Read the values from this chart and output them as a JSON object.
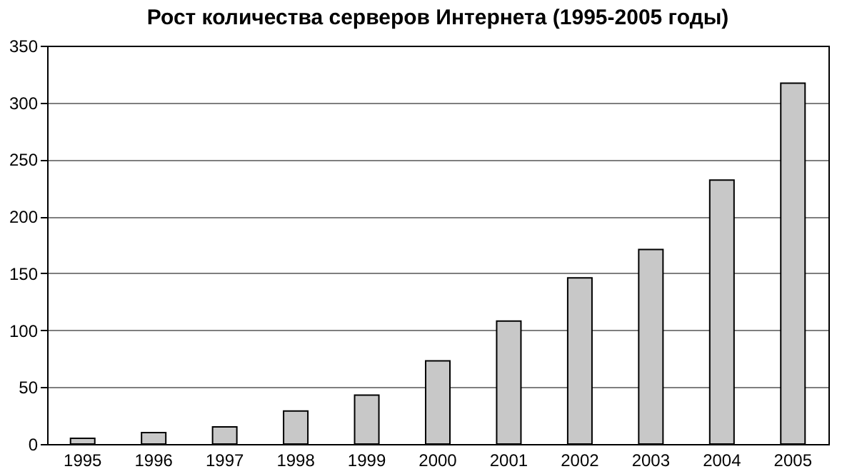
{
  "chart_data": {
    "type": "bar",
    "title": "Рост количества серверов Интернета (1995-2005 годы)",
    "categories": [
      "1995",
      "1996",
      "1997",
      "1998",
      "1999",
      "2000",
      "2001",
      "2002",
      "2003",
      "2004",
      "2005"
    ],
    "values": [
      5,
      10,
      15,
      29,
      43,
      73,
      108,
      146,
      171,
      232,
      317
    ],
    "color": "#c8c8c8",
    "ylim": [
      0,
      350
    ],
    "yticks": [
      0,
      50,
      100,
      150,
      200,
      250,
      300,
      350
    ],
    "grid": "y"
  }
}
